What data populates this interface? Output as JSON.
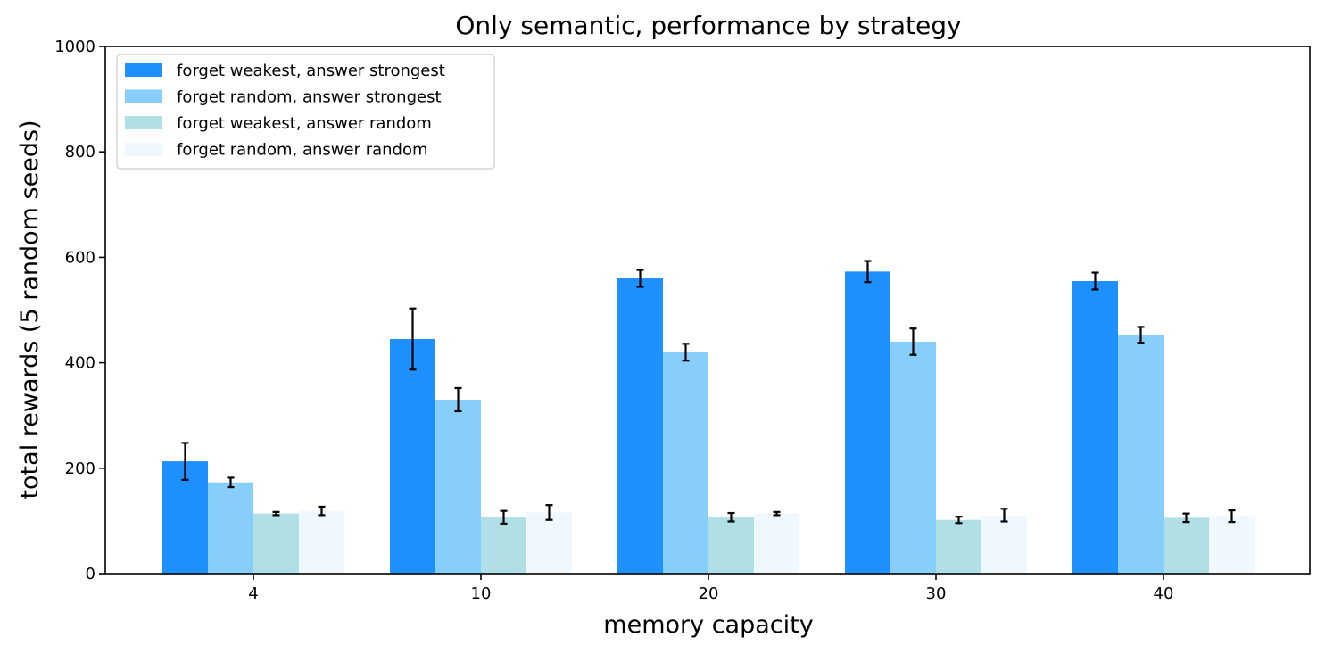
{
  "chart_data": {
    "type": "bar",
    "title": "Only semantic, performance by strategy",
    "xlabel": "memory capacity",
    "ylabel": "total rewards (5 random seeds)",
    "categories": [
      "4",
      "10",
      "20",
      "30",
      "40"
    ],
    "ylim": [
      0,
      1000
    ],
    "yticks": [
      "0",
      "200",
      "400",
      "600",
      "800",
      "1000"
    ],
    "grid": false,
    "legend_position": "top-left",
    "series": [
      {
        "name": "forget weakest, answer strongest",
        "color": "#1e90ff",
        "values": [
          213,
          445,
          560,
          573,
          555
        ],
        "errors": [
          35,
          58,
          16,
          20,
          16
        ]
      },
      {
        "name": "forget random, answer strongest",
        "color": "#87cefa",
        "values": [
          173,
          330,
          420,
          440,
          453
        ],
        "errors": [
          9,
          22,
          16,
          25,
          15
        ]
      },
      {
        "name": "forget weakest, answer random",
        "color": "#b0e0e6",
        "values": [
          114,
          107,
          107,
          102,
          106
        ],
        "errors": [
          3,
          12,
          8,
          6,
          8
        ]
      },
      {
        "name": "forget random, answer random",
        "color": "#f0f8ff",
        "values": [
          119,
          116,
          114,
          111,
          109
        ],
        "errors": [
          8,
          14,
          3,
          12,
          11
        ]
      }
    ]
  }
}
